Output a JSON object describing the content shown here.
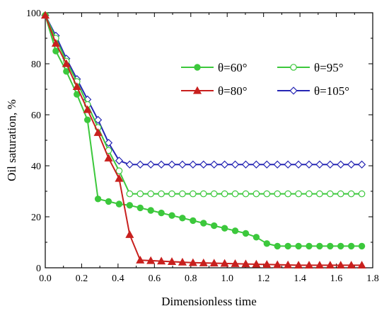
{
  "chart_data": {
    "type": "line",
    "xlabel": "Dimensionless time",
    "ylabel": "Oil saturation, %",
    "xlim": [
      0.0,
      1.8
    ],
    "ylim": [
      0,
      100
    ],
    "xticks": [
      "0.0",
      "0.2",
      "0.4",
      "0.6",
      "0.8",
      "1.0",
      "1.2",
      "1.4",
      "1.6",
      "1.8"
    ],
    "yticks": [
      "0",
      "20",
      "40",
      "60",
      "80",
      "100"
    ],
    "grid": false,
    "legend_position": "top-right",
    "series": [
      {
        "name": "θ=60°",
        "color": "#3cc83c",
        "marker": "circle-filled",
        "x": [
          0.0,
          0.058,
          0.116,
          0.174,
          0.232,
          0.29,
          0.348,
          0.406,
          0.464,
          0.522,
          0.58,
          0.638,
          0.696,
          0.754,
          0.812,
          0.87,
          0.928,
          0.986,
          1.044,
          1.102,
          1.16,
          1.218,
          1.276,
          1.334,
          1.392,
          1.45,
          1.508,
          1.566,
          1.624,
          1.682,
          1.74
        ],
        "y": [
          99,
          85,
          77,
          68,
          58,
          27,
          26,
          25,
          24.5,
          23.5,
          22.5,
          21.5,
          20.5,
          19.5,
          18.5,
          17.5,
          16.5,
          15.5,
          14.5,
          13.5,
          12,
          9.5,
          8.5,
          8.5,
          8.5,
          8.5,
          8.5,
          8.5,
          8.5,
          8.5,
          8.5
        ]
      },
      {
        "name": "θ=95°",
        "color": "#3cc83c",
        "marker": "circle-open",
        "x": [
          0.0,
          0.058,
          0.116,
          0.174,
          0.232,
          0.29,
          0.348,
          0.406,
          0.464,
          0.522,
          0.58,
          0.638,
          0.696,
          0.754,
          0.812,
          0.87,
          0.928,
          0.986,
          1.044,
          1.102,
          1.16,
          1.218,
          1.276,
          1.334,
          1.392,
          1.45,
          1.508,
          1.566,
          1.624,
          1.682,
          1.74
        ],
        "y": [
          99,
          90,
          81,
          73,
          64,
          55,
          46,
          38,
          29,
          29,
          29,
          29,
          29,
          29,
          29,
          29,
          29,
          29,
          29,
          29,
          29,
          29,
          29,
          29,
          29,
          29,
          29,
          29,
          29,
          29,
          29
        ]
      },
      {
        "name": "θ=80°",
        "color": "#c8201e",
        "marker": "triangle-filled",
        "x": [
          0.0,
          0.058,
          0.116,
          0.174,
          0.232,
          0.29,
          0.348,
          0.406,
          0.464,
          0.522,
          0.58,
          0.638,
          0.696,
          0.754,
          0.812,
          0.87,
          0.928,
          0.986,
          1.044,
          1.102,
          1.16,
          1.218,
          1.276,
          1.334,
          1.392,
          1.45,
          1.508,
          1.566,
          1.624,
          1.682,
          1.74
        ],
        "y": [
          99,
          88,
          80,
          71,
          62,
          53,
          43,
          35,
          13,
          3,
          2.8,
          2.6,
          2.4,
          2.2,
          2,
          1.9,
          1.8,
          1.7,
          1.6,
          1.5,
          1.4,
          1.3,
          1.2,
          1.1,
          1,
          1,
          1,
          1,
          1,
          1,
          1
        ]
      },
      {
        "name": "θ=105°",
        "color": "#2626b4",
        "marker": "diamond-open",
        "x": [
          0.0,
          0.058,
          0.116,
          0.174,
          0.232,
          0.29,
          0.348,
          0.406,
          0.464,
          0.522,
          0.58,
          0.638,
          0.696,
          0.754,
          0.812,
          0.87,
          0.928,
          0.986,
          1.044,
          1.102,
          1.16,
          1.218,
          1.276,
          1.334,
          1.392,
          1.45,
          1.508,
          1.566,
          1.624,
          1.682,
          1.74
        ],
        "y": [
          99,
          91,
          82,
          74,
          66,
          58,
          49,
          42,
          40.5,
          40.5,
          40.5,
          40.5,
          40.5,
          40.5,
          40.5,
          40.5,
          40.5,
          40.5,
          40.5,
          40.5,
          40.5,
          40.5,
          40.5,
          40.5,
          40.5,
          40.5,
          40.5,
          40.5,
          40.5,
          40.5,
          40.5
        ]
      }
    ]
  }
}
